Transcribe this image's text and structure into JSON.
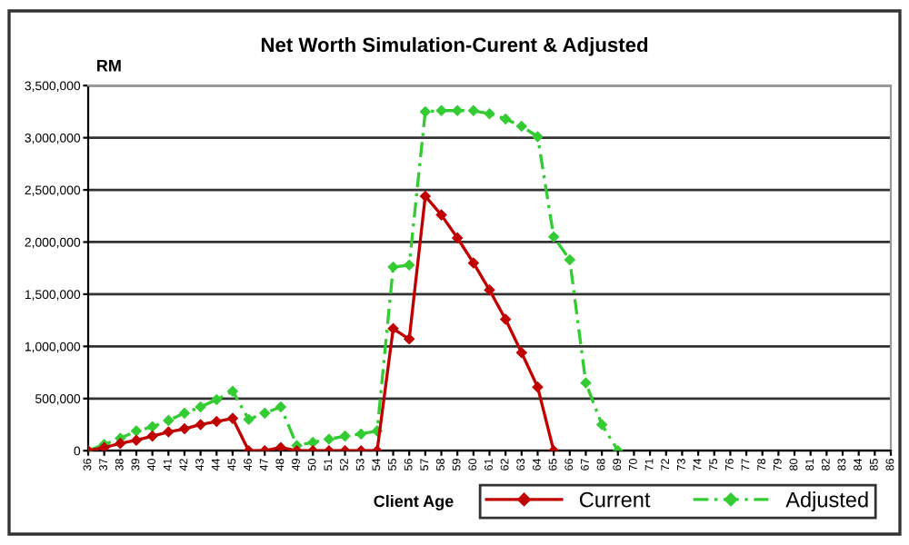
{
  "chart_data": {
    "type": "line",
    "title": "Net Worth Simulation-Curent & Adjusted",
    "xlabel": "Client Age",
    "ylabel": "RM",
    "categories": [
      "36",
      "37",
      "38",
      "39",
      "40",
      "41",
      "42",
      "43",
      "44",
      "45",
      "46",
      "47",
      "48",
      "49",
      "50",
      "51",
      "52",
      "53",
      "54",
      "55",
      "56",
      "57",
      "58",
      "59",
      "60",
      "61",
      "62",
      "63",
      "64",
      "65",
      "66",
      "67",
      "68",
      "69",
      "70",
      "71",
      "72",
      "73",
      "74",
      "75",
      "76",
      "77",
      "78",
      "79",
      "80",
      "81",
      "82",
      "83",
      "84",
      "85",
      "86"
    ],
    "series": [
      {
        "name": "Current",
        "color": "#c00000",
        "line_style": "solid",
        "values": [
          0,
          30000,
          70000,
          100000,
          140000,
          180000,
          210000,
          250000,
          280000,
          310000,
          0,
          0,
          30000,
          0,
          0,
          0,
          0,
          0,
          0,
          1170000,
          1070000,
          2440000,
          2260000,
          2040000,
          1800000,
          1540000,
          1260000,
          940000,
          610000,
          0,
          null,
          null,
          null,
          null,
          null,
          null,
          null,
          null,
          null,
          null,
          null,
          null,
          null,
          null,
          null,
          null,
          null,
          null,
          null,
          null,
          null
        ]
      },
      {
        "name": "Adjusted",
        "color": "#33cc33",
        "line_style": "dashed",
        "values": [
          0,
          60000,
          120000,
          190000,
          230000,
          290000,
          360000,
          420000,
          490000,
          570000,
          300000,
          360000,
          420000,
          50000,
          80000,
          110000,
          140000,
          160000,
          190000,
          1760000,
          1780000,
          3250000,
          3260000,
          3260000,
          3260000,
          3230000,
          3180000,
          3110000,
          3010000,
          2050000,
          1830000,
          650000,
          250000,
          0,
          null,
          null,
          null,
          null,
          null,
          null,
          null,
          null,
          null,
          null,
          null,
          null,
          null,
          null,
          null,
          null,
          null
        ]
      }
    ],
    "ylim": [
      0,
      3500000
    ],
    "yticks": [
      {
        "value": 0,
        "label": "0"
      },
      {
        "value": 500000,
        "label": "500,000"
      },
      {
        "value": 1000000,
        "label": "1,000,000"
      },
      {
        "value": 1500000,
        "label": "1,500,000"
      },
      {
        "value": 2000000,
        "label": "2,000,000"
      },
      {
        "value": 2500000,
        "label": "2,500,000"
      },
      {
        "value": 3000000,
        "label": "3,000,000"
      },
      {
        "value": 3500000,
        "label": "3,500,000"
      }
    ],
    "grid": "y",
    "legend": "bottom right",
    "marker": "diamond"
  }
}
